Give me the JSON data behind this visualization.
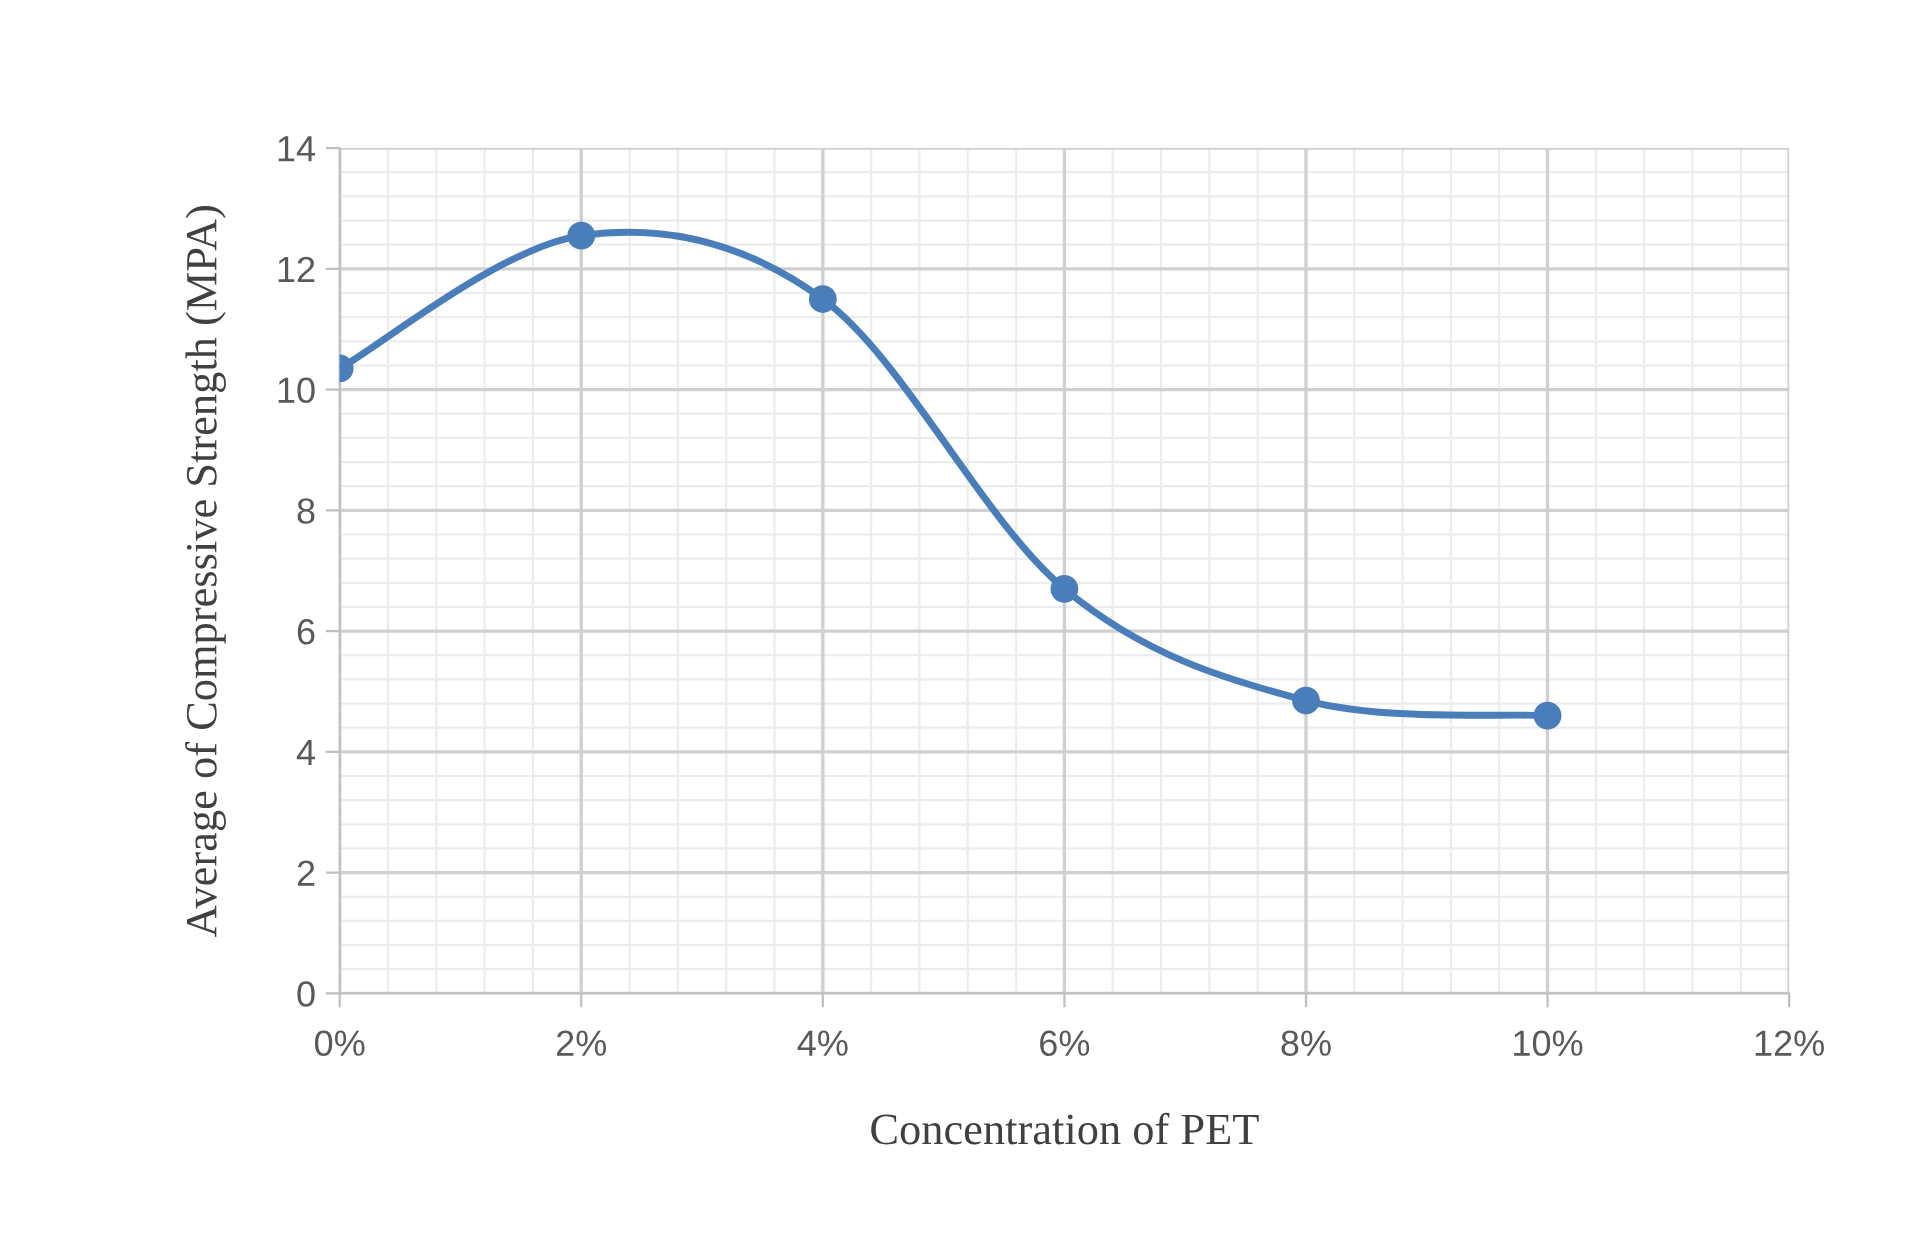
{
  "chart_data": {
    "type": "line",
    "xlabel": "Concentration of PET",
    "ylabel": "Average of Compressive Strength (MPA)",
    "x": [
      0,
      2,
      4,
      6,
      8,
      10
    ],
    "series": [
      {
        "color": "#4a7ebb",
        "values": [
          10.35,
          12.55,
          11.5,
          6.7,
          4.85,
          4.6
        ]
      }
    ],
    "xlim": [
      0,
      12
    ],
    "xticks": [
      {
        "value": 0,
        "label": "0%"
      },
      {
        "value": 2,
        "label": "2%"
      },
      {
        "value": 4,
        "label": "4%"
      },
      {
        "value": 6,
        "label": "6%"
      },
      {
        "value": 8,
        "label": "8%"
      },
      {
        "value": 10,
        "label": "10%"
      },
      {
        "value": 12,
        "label": "12%"
      }
    ],
    "ylim": [
      0,
      14
    ],
    "yticks": [
      0,
      2,
      4,
      6,
      8,
      10,
      12,
      14
    ],
    "grid": true,
    "marker": "circle",
    "line_style": "solid"
  }
}
